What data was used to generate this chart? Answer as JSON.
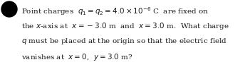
{
  "line1": "Point charges  $q_1 = q_2 = 4.0\\times 10^{-6}$ C  are fixed on",
  "line2": "the $x$-axis at  $x = -3.0$ m  and  $x = 3.0$ m.  What charge",
  "line3": "$q$ must be placed at the origin so that the electric field",
  "line4": "vanishes at  $x = 0$,  $y = 3.0$ m?",
  "bullet_color": "#000000",
  "text_color": "#1a1a1a",
  "background_color": "#ffffff",
  "fontsize": 7.5,
  "font_family": "DejaVu Serif"
}
